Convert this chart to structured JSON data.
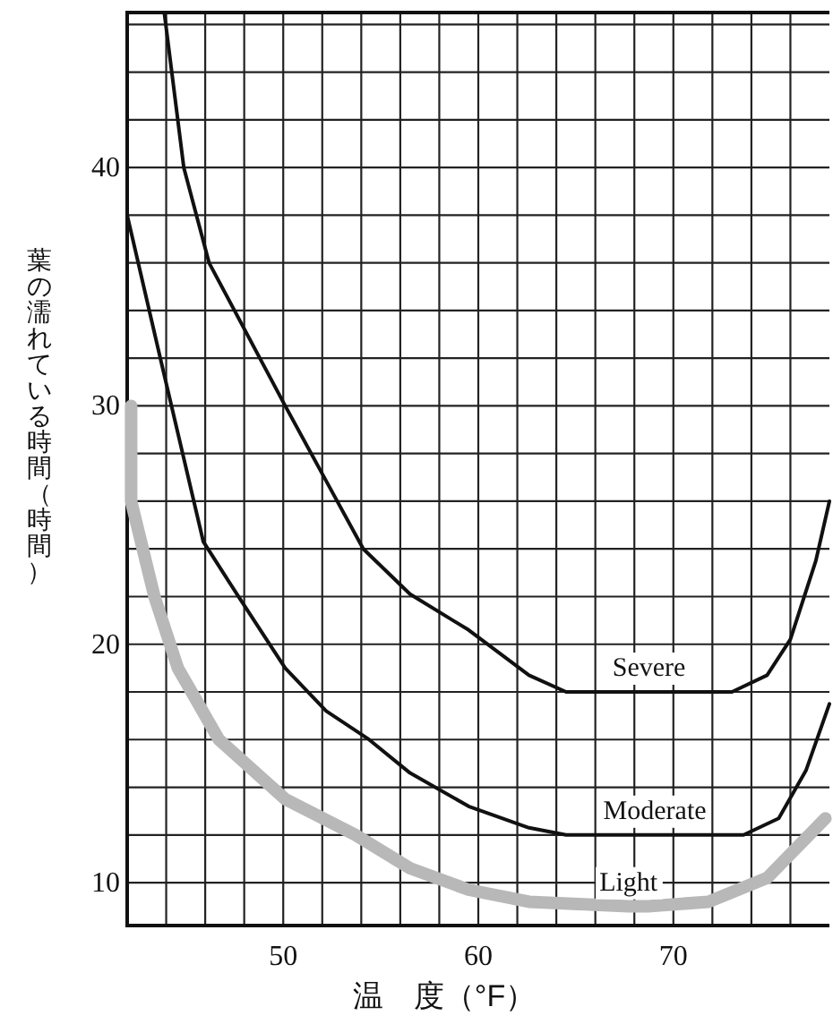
{
  "chart_data": {
    "type": "line",
    "xlabel": "温　度（°F）",
    "ylabel": "葉の濡れている時間（時間）",
    "xlim": [
      42,
      78
    ],
    "ylim": [
      8.2,
      46.5
    ],
    "xticks": [
      {
        "value": 44,
        "label": null
      },
      {
        "value": 46,
        "label": null
      },
      {
        "value": 48,
        "label": null
      },
      50,
      {
        "value": 52,
        "label": null
      },
      {
        "value": 54,
        "label": null
      },
      {
        "value": 56,
        "label": null
      },
      {
        "value": 58,
        "label": null
      },
      60,
      {
        "value": 62,
        "label": null
      },
      {
        "value": 64,
        "label": null
      },
      {
        "value": 66,
        "label": null
      },
      {
        "value": 68,
        "label": null
      },
      70,
      {
        "value": 72,
        "label": null
      },
      {
        "value": 74,
        "label": null
      },
      {
        "value": 76,
        "label": null
      }
    ],
    "yticks": [
      10,
      {
        "value": 12,
        "label": null
      },
      {
        "value": 14,
        "label": null
      },
      {
        "value": 16,
        "label": null
      },
      {
        "value": 18,
        "label": null
      },
      20,
      {
        "value": 22,
        "label": null
      },
      {
        "value": 24,
        "label": null
      },
      {
        "value": 26,
        "label": null
      },
      {
        "value": 28,
        "label": null
      },
      30,
      {
        "value": 32,
        "label": null
      },
      {
        "value": 34,
        "label": null
      },
      {
        "value": 36,
        "label": null
      },
      {
        "value": 38,
        "label": null
      },
      40,
      {
        "value": 42,
        "label": null
      },
      {
        "value": 44,
        "label": null
      },
      {
        "value": 46,
        "label": null
      }
    ],
    "grid": true,
    "marker": "none",
    "line_style": "solid",
    "series": [
      {
        "name": "Severe",
        "color": "#111111",
        "x": [
          43.9,
          44.9,
          46.2,
          50.1,
          52.1,
          54.1,
          56.5,
          59.5,
          62.6,
          64.5,
          73.0,
          74.8,
          76.0,
          77.3,
          78
        ],
        "values": [
          46.5,
          40,
          36,
          30,
          27,
          24,
          22.1,
          20.6,
          18.7,
          18,
          18,
          18.7,
          20.2,
          23.5,
          26
        ]
      },
      {
        "name": "Moderate",
        "color": "#111111",
        "x": [
          42,
          43.7,
          45.9,
          47.7,
          50.1,
          52.2,
          54.4,
          56.5,
          59.5,
          62.6,
          64.5,
          73.6,
          75.4,
          76.8,
          78
        ],
        "values": [
          38,
          32,
          24.3,
          22,
          19,
          17.2,
          16,
          14.6,
          13.2,
          12.3,
          12,
          12,
          12.7,
          14.7,
          17.5
        ]
      },
      {
        "name": "Light",
        "color": "#b8b8b8",
        "x": [
          42.2,
          42.2,
          43.4,
          44.6,
          46.7,
          50.1,
          53.7,
          56.5,
          59.5,
          62.6,
          67.7,
          68.7,
          71.8,
          74.8,
          77.8
        ],
        "values": [
          30,
          26,
          22,
          19,
          16,
          13.5,
          12,
          10.6,
          9.7,
          9.2,
          9,
          9,
          9.2,
          10.2,
          12.7
        ]
      }
    ]
  }
}
